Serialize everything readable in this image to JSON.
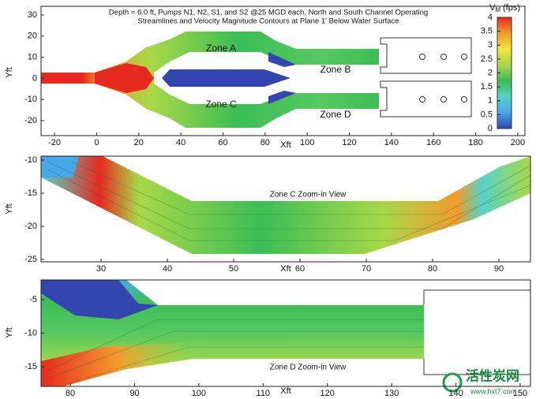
{
  "chart_data": [
    {
      "type": "contour",
      "title": [
        "Depth = 6.0 ft, Pumps N1, N2, S1, and S2 @25 MGD each, North and South Channel Operating",
        "Streamlines and Velocity Magnitude Contours at Plane 1' Below Water Surface"
      ],
      "xlabel": "Xft",
      "ylabel": "Yft",
      "xlim": [
        -26.4,
        203.4
      ],
      "ylim": [
        -27.1,
        34.1
      ],
      "xticks": [
        -20,
        0,
        20,
        40,
        60,
        80,
        100,
        120,
        140,
        160,
        180,
        200
      ],
      "yticks": [
        -20,
        -10,
        0,
        10,
        20,
        30
      ],
      "annotations": [
        "Zone A",
        "Zone B",
        "Zone C",
        "Zone D"
      ],
      "colorbar": {
        "symbol": "V",
        "subscript": "M",
        "unit": "(fps)",
        "lim": [
          0,
          4
        ],
        "ticks": [
          0,
          0.5,
          1,
          1.5,
          2,
          2.5,
          3,
          3.5,
          4
        ],
        "colors": [
          "#3346b0",
          "#46a8e8",
          "#56d2c8",
          "#3cbd55",
          "#a8d848",
          "#f2e53a",
          "#f39a2c",
          "#e62a20"
        ]
      }
    },
    {
      "type": "contour",
      "xlabel": "Xft",
      "ylabel": "Yft",
      "xlim": [
        20.95,
        94.76
      ],
      "ylim": [
        -25.36,
        -9.4
      ],
      "xticks": [
        30,
        40,
        50,
        60,
        70,
        80,
        90
      ],
      "yticks": [
        -25,
        -20,
        -15,
        -10
      ],
      "annotations": [
        "Zone C Zoom-in View"
      ]
    },
    {
      "type": "contour",
      "xlabel": "Xft",
      "ylabel": "Yft",
      "xlim": [
        75.45,
        151.6
      ],
      "ylim": [
        -17.94,
        -2.06
      ],
      "xticks": [
        80,
        90,
        100,
        110,
        120,
        130,
        140,
        150
      ],
      "yticks": [
        -15,
        -10,
        -5
      ],
      "annotations": [
        "Zone D Zoom-in View"
      ]
    }
  ],
  "watermark": {
    "text": "活性炭网",
    "url": "www.hxt7.com"
  }
}
